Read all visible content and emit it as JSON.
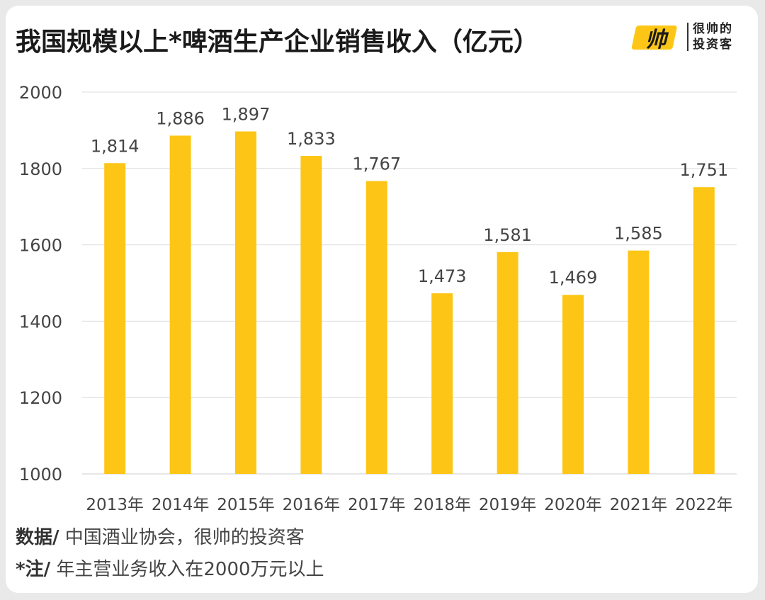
{
  "title": "我国规模以上*啤酒生产企业销售收入（亿元）",
  "brand": {
    "logo_text": "帅",
    "line1": "很帅的",
    "line2": "投资客"
  },
  "footer": {
    "source_label": "数据/",
    "source_text": " 中国酒业协会，很帅的投资客",
    "note_label": "*注/",
    "note_text": " 年主营业务收入在2000万元以上"
  },
  "colors": {
    "bar": "#FDC616",
    "grid": "#dcdcdc",
    "text": "#444444",
    "brand_yellow": "#FDC616"
  },
  "chart_data": {
    "type": "bar",
    "title": "我国规模以上*啤酒生产企业销售收入（亿元）",
    "categories": [
      "2013年",
      "2014年",
      "2015年",
      "2016年",
      "2017年",
      "2018年",
      "2019年",
      "2020年",
      "2021年",
      "2022年"
    ],
    "values": [
      1814,
      1886,
      1897,
      1833,
      1767,
      1473,
      1581,
      1469,
      1585,
      1751
    ],
    "value_labels": [
      "1,814",
      "1,886",
      "1,897",
      "1,833",
      "1,767",
      "1,473",
      "1,581",
      "1,469",
      "1,585",
      "1,751"
    ],
    "ylim": [
      1000,
      2000
    ],
    "yticks": [
      1000,
      1200,
      1400,
      1600,
      1800,
      2000
    ],
    "grid": true,
    "legend": "none",
    "xlabel": "",
    "ylabel": ""
  }
}
